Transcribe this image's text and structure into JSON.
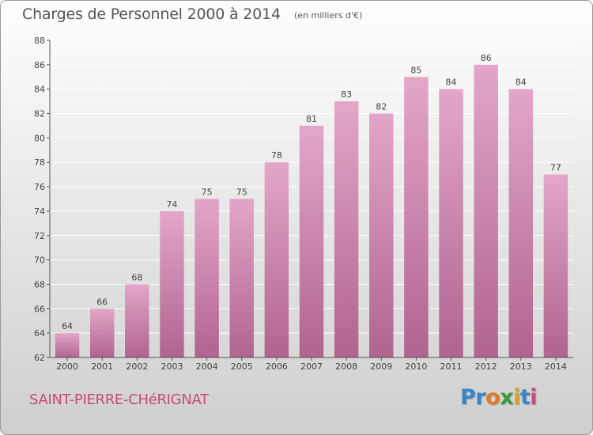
{
  "title": "Charges de Personnel 2000 à 2014",
  "subtitle": "(en milliers d'€)",
  "commune": "SAINT-PIERRE-CHéRIGNAT",
  "logo": {
    "text": "Proxiti",
    "letters": [
      {
        "ch": "P",
        "color": "#3a86c8"
      },
      {
        "ch": "r",
        "color": "#3a86c8"
      },
      {
        "ch": "o",
        "color": "#e07b1f"
      },
      {
        "ch": "x",
        "color": "#3a9a3a"
      },
      {
        "ch": "i",
        "color": "#d9a31f"
      },
      {
        "ch": "t",
        "color": "#3a86c8"
      },
      {
        "ch": "i",
        "color": "#c8497c"
      }
    ]
  },
  "colors": {
    "bar_top": "#e3a6c8",
    "bar_bottom": "#b0648f",
    "grid": "#ffffff",
    "axis": "#555555",
    "title": "#555555",
    "commune": "#c8497c"
  },
  "chart_data": {
    "type": "bar",
    "categories": [
      "2000",
      "2001",
      "2002",
      "2003",
      "2004",
      "2005",
      "2006",
      "2007",
      "2008",
      "2009",
      "2010",
      "2011",
      "2012",
      "2013",
      "2014"
    ],
    "values": [
      64,
      66,
      68,
      74,
      75,
      75,
      78,
      81,
      83,
      82,
      85,
      84,
      86,
      84,
      77
    ],
    "ylim": [
      62,
      88
    ],
    "yticks": [
      62,
      64,
      66,
      68,
      70,
      72,
      74,
      76,
      78,
      80,
      82,
      84,
      86,
      88
    ],
    "grid": true,
    "data_labels": true
  }
}
